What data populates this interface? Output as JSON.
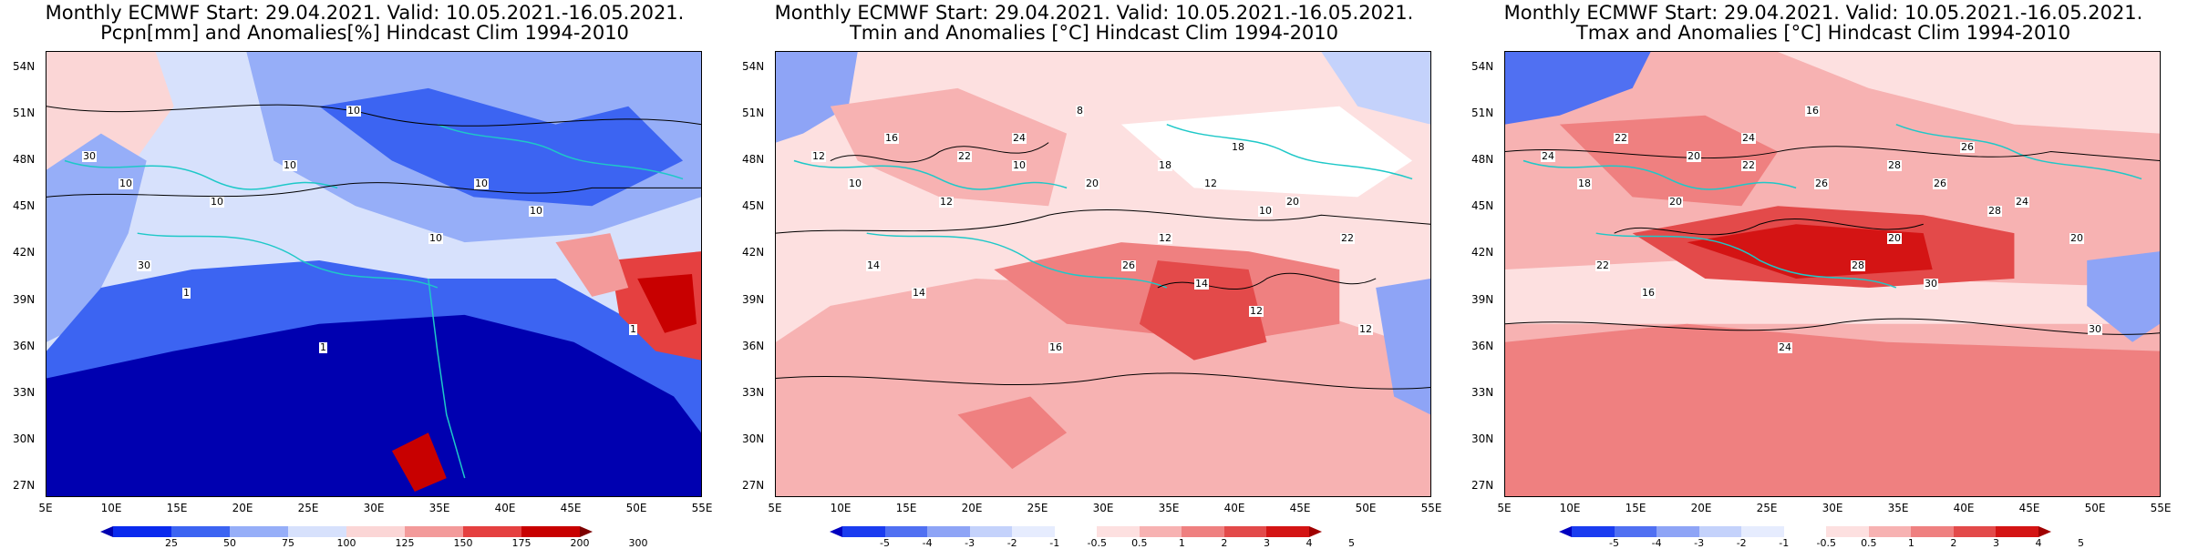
{
  "panels": [
    {
      "title_line1": "Monthly ECMWF Start: 29.04.2021. Valid: 10.05.2021.-16.05.2021.",
      "title_line2": "Pcpn[mm] and Anomalies[%] Hindcast Clim 1994-2010",
      "colorbar": {
        "labels": [
          "25",
          "50",
          "75",
          "100",
          "125",
          "150",
          "175",
          "200",
          "300"
        ],
        "colors": [
          "#0000b0",
          "#0a2aee",
          "#3c64f2",
          "#96aef8",
          "#d7e1fc",
          "#fbd6d6",
          "#f39a9a",
          "#e54040",
          "#c80000",
          "#7d0000"
        ]
      },
      "contour_labels": [
        "10",
        "10",
        "10",
        "10",
        "30",
        "30",
        "10",
        "1",
        "1",
        "10",
        "10",
        "1"
      ]
    },
    {
      "title_line1": "Monthly ECMWF Start: 29.04.2021. Valid: 10.05.2021.-16.05.2021.",
      "title_line2": "Tmin and Anomalies [°C] Hindcast Clim 1994-2010",
      "colorbar": {
        "labels": [
          "-5",
          "-4",
          "-3",
          "-2",
          "-1",
          "-0.5",
          "0.5",
          "1",
          "2",
          "3",
          "4",
          "5"
        ],
        "colors": [
          "#0000c0",
          "#1a3cf0",
          "#5070f2",
          "#8ea4f6",
          "#c4d2fb",
          "#e6ecfe",
          "#ffffff",
          "#fde0e0",
          "#f7b2b2",
          "#ef8080",
          "#e34a4a",
          "#d41414",
          "#a00000"
        ]
      },
      "contour_labels": [
        "8",
        "10",
        "12",
        "10",
        "12",
        "14",
        "12",
        "14",
        "16",
        "12",
        "10",
        "12",
        "16",
        "22",
        "24",
        "20",
        "18",
        "18",
        "20",
        "22",
        "26",
        "14",
        "12"
      ]
    },
    {
      "title_line1": "Monthly ECMWF Start: 29.04.2021. Valid: 10.05.2021.-16.05.2021.",
      "title_line2": "Tmax and Anomalies [°C] Hindcast Clim 1994-2010",
      "colorbar": {
        "labels": [
          "-5",
          "-4",
          "-3",
          "-2",
          "-1",
          "-0.5",
          "0.5",
          "1",
          "2",
          "3",
          "4",
          "5"
        ],
        "colors": [
          "#0000c0",
          "#1a3cf0",
          "#5070f2",
          "#8ea4f6",
          "#c4d2fb",
          "#e6ecfe",
          "#ffffff",
          "#fde0e0",
          "#f7b2b2",
          "#ef8080",
          "#e34a4a",
          "#d41414",
          "#a00000"
        ]
      },
      "contour_labels": [
        "16",
        "18",
        "20",
        "22",
        "24",
        "22",
        "20",
        "16",
        "24",
        "26",
        "28",
        "30",
        "22",
        "20",
        "24",
        "26",
        "28",
        "26",
        "24",
        "20",
        "28",
        "30"
      ]
    }
  ],
  "axes": {
    "lat_labels": [
      "54N",
      "51N",
      "48N",
      "45N",
      "42N",
      "39N",
      "36N",
      "33N",
      "30N",
      "27N"
    ],
    "lon_labels": [
      "5E",
      "10E",
      "15E",
      "20E",
      "25E",
      "30E",
      "35E",
      "40E",
      "45E",
      "50E",
      "55E"
    ]
  }
}
